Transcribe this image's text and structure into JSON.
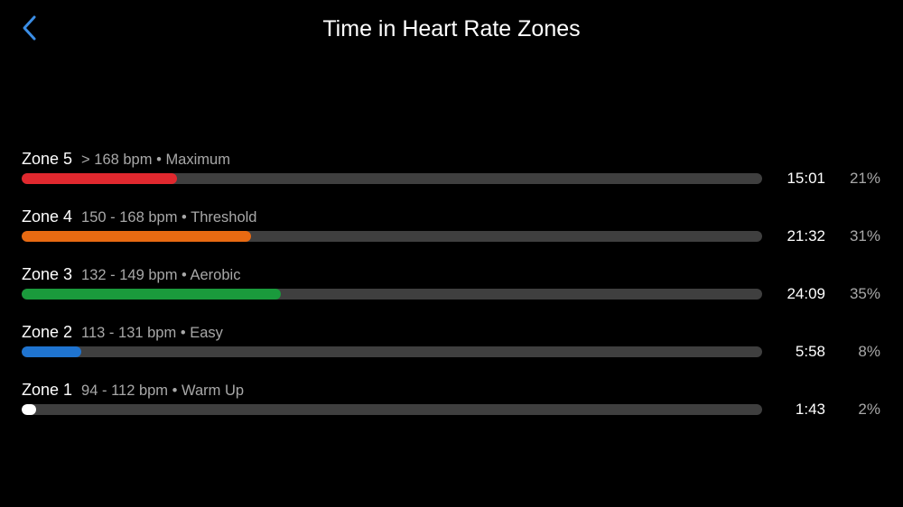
{
  "header": {
    "title": "Time in Heart Rate Zones",
    "back_icon": "chevron-left-icon",
    "accent": "#3b8ee6"
  },
  "zones": [
    {
      "name": "Zone 5",
      "range": "> 168 bpm",
      "label": "Maximum",
      "time": "15:01",
      "percent_label": "21%",
      "percent": 21,
      "color": "#e0282e"
    },
    {
      "name": "Zone 4",
      "range": "150 - 168 bpm",
      "label": "Threshold",
      "time": "21:32",
      "percent_label": "31%",
      "percent": 31,
      "color": "#e86a12"
    },
    {
      "name": "Zone 3",
      "range": "132 - 149 bpm",
      "label": "Aerobic",
      "time": "24:09",
      "percent_label": "35%",
      "percent": 35,
      "color": "#1a9a3c"
    },
    {
      "name": "Zone 2",
      "range": "113 - 131 bpm",
      "label": "Easy",
      "time": "5:58",
      "percent_label": "8%",
      "percent": 8,
      "color": "#1f74d0"
    },
    {
      "name": "Zone 1",
      "range": "94 - 112 bpm",
      "label": "Warm Up",
      "time": "1:43",
      "percent_label": "2%",
      "percent": 2,
      "color": "#ffffff"
    }
  ]
}
